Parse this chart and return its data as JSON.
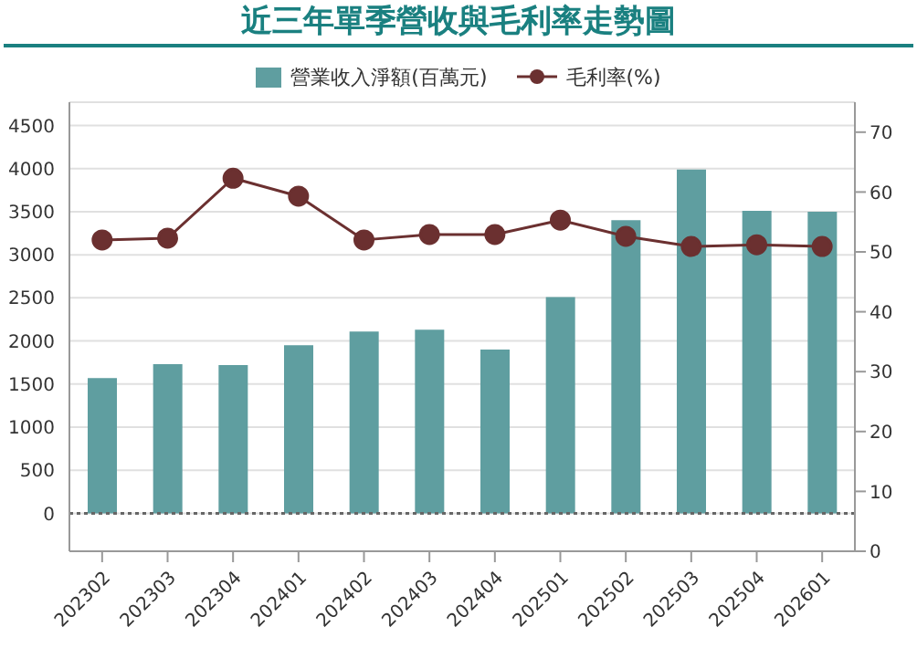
{
  "chart_data": {
    "type": "bar",
    "title": "近三年單季營收與毛利率走勢圖",
    "categories": [
      "202302",
      "202303",
      "202304",
      "202401",
      "202402",
      "202403",
      "202404",
      "202501",
      "202502",
      "202503",
      "202504",
      "202601"
    ],
    "series": [
      {
        "name": "營業收入淨額(百萬元)",
        "color": "#5f9ea0",
        "values": [
          1570,
          1730,
          1720,
          1950,
          2110,
          2130,
          1900,
          2510,
          3400,
          3990,
          3510,
          3500
        ]
      },
      {
        "name": "毛利率(%)",
        "type": "line",
        "axis": "y2",
        "color": "#6b3030",
        "marker": "circle",
        "values": [
          52.0,
          52.3,
          62.3,
          59.3,
          52.0,
          52.9,
          52.9,
          55.3,
          52.6,
          50.9,
          51.2,
          50.9
        ]
      }
    ],
    "ylim": [
      -440,
      4770
    ],
    "yticks": [
      0,
      500,
      1000,
      1500,
      2000,
      2500,
      3000,
      3500,
      4000,
      4500
    ],
    "y2lim": [
      0,
      75
    ],
    "y2ticks": [
      0,
      10,
      20,
      30,
      40,
      50,
      60,
      70
    ],
    "ref_lines": [
      {
        "axis": "y",
        "value": 0,
        "line_style": "dotted",
        "color": "#666666"
      }
    ],
    "grid": "y",
    "legend": "top"
  }
}
